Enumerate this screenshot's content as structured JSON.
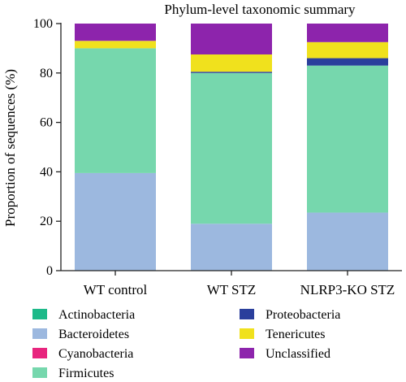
{
  "chart_data": {
    "type": "bar",
    "stacked": true,
    "title": "Phylum-level taxonomic summary",
    "xlabel": "",
    "ylabel": "Proportion of sequences (%)",
    "ylim": [
      0,
      100
    ],
    "yticks": [
      "0",
      "20",
      "40",
      "60",
      "80",
      "100"
    ],
    "categories": [
      "WT control",
      "WT STZ",
      "NLRP3-KO STZ"
    ],
    "legend_position": "bottom",
    "grid": false,
    "series": [
      {
        "name": "Actinobacteria",
        "color": "#1db989",
        "values": [
          0,
          0,
          0
        ]
      },
      {
        "name": "Bacteroidetes",
        "color": "#9cb8df",
        "values": [
          39.5,
          19,
          23.5
        ]
      },
      {
        "name": "Cyanobacteria",
        "color": "#e8257e",
        "values": [
          0,
          0,
          0
        ]
      },
      {
        "name": "Firmicutes",
        "color": "#76d7ad",
        "values": [
          50.5,
          61,
          59.5
        ]
      },
      {
        "name": "Proteobacteria",
        "color": "#2a3f9c",
        "values": [
          0,
          0.5,
          3
        ]
      },
      {
        "name": "Tenericutes",
        "color": "#f0e11d",
        "values": [
          3,
          7,
          6.5
        ]
      },
      {
        "name": "Unclassified",
        "color": "#8d24ac",
        "values": [
          7,
          12.5,
          7.5
        ]
      }
    ]
  }
}
